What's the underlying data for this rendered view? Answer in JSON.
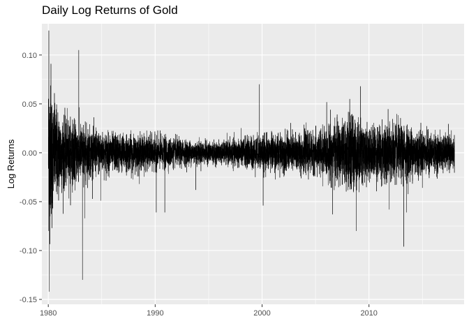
{
  "chart_data": {
    "type": "line",
    "title": "Daily Log Returns of Gold",
    "xlabel": "",
    "ylabel": "Log Returns",
    "xlim": [
      1979.4,
      2018.9
    ],
    "ylim": [
      -0.155,
      0.132
    ],
    "x_ticks": [
      1980,
      1990,
      2000,
      2010
    ],
    "x_tick_labels": [
      "1980",
      "1990",
      "2000",
      "2010"
    ],
    "y_ticks": [
      -0.15,
      -0.1,
      -0.05,
      0.0,
      0.05,
      0.1
    ],
    "y_tick_labels": [
      "-0.15",
      "-0.10",
      "-0.05",
      "0.00",
      "0.05",
      "0.10"
    ],
    "grid": true,
    "legend": "none",
    "series": [
      {
        "x_range": [
          1980.0,
          2018.0
        ],
        "volatility_profile": [
          {
            "x": 1980.0,
            "sd": 0.04
          },
          {
            "x": 1980.5,
            "sd": 0.025
          },
          {
            "x": 1981.5,
            "sd": 0.017
          },
          {
            "x": 1983.0,
            "sd": 0.014
          },
          {
            "x": 1985.0,
            "sd": 0.01
          },
          {
            "x": 1987.0,
            "sd": 0.009
          },
          {
            "x": 1990.0,
            "sd": 0.008
          },
          {
            "x": 1993.0,
            "sd": 0.006
          },
          {
            "x": 1996.0,
            "sd": 0.005
          },
          {
            "x": 1999.0,
            "sd": 0.008
          },
          {
            "x": 2002.0,
            "sd": 0.009
          },
          {
            "x": 2005.0,
            "sd": 0.01
          },
          {
            "x": 2006.5,
            "sd": 0.013
          },
          {
            "x": 2008.5,
            "sd": 0.018
          },
          {
            "x": 2010.0,
            "sd": 0.012
          },
          {
            "x": 2011.5,
            "sd": 0.015
          },
          {
            "x": 2013.5,
            "sd": 0.013
          },
          {
            "x": 2016.0,
            "sd": 0.009
          },
          {
            "x": 2018.0,
            "sd": 0.008
          }
        ],
        "extremes": [
          {
            "x": 1980.05,
            "y": 0.125
          },
          {
            "x": 1980.1,
            "y": -0.142
          },
          {
            "x": 1980.25,
            "y": 0.091
          },
          {
            "x": 1980.35,
            "y": -0.077
          },
          {
            "x": 1982.85,
            "y": 0.105
          },
          {
            "x": 1983.2,
            "y": -0.13
          },
          {
            "x": 1983.4,
            "y": -0.067
          },
          {
            "x": 1984.9,
            "y": -0.049
          },
          {
            "x": 1990.1,
            "y": -0.061
          },
          {
            "x": 1990.9,
            "y": -0.061
          },
          {
            "x": 1993.8,
            "y": -0.038
          },
          {
            "x": 1999.75,
            "y": 0.07
          },
          {
            "x": 2000.1,
            "y": -0.054
          },
          {
            "x": 2006.4,
            "y": 0.044
          },
          {
            "x": 2006.6,
            "y": -0.063
          },
          {
            "x": 2008.2,
            "y": 0.055
          },
          {
            "x": 2008.8,
            "y": -0.08
          },
          {
            "x": 2009.2,
            "y": 0.068
          },
          {
            "x": 2011.9,
            "y": -0.058
          },
          {
            "x": 2013.25,
            "y": -0.096
          },
          {
            "x": 2013.5,
            "y": -0.061
          }
        ]
      }
    ]
  }
}
